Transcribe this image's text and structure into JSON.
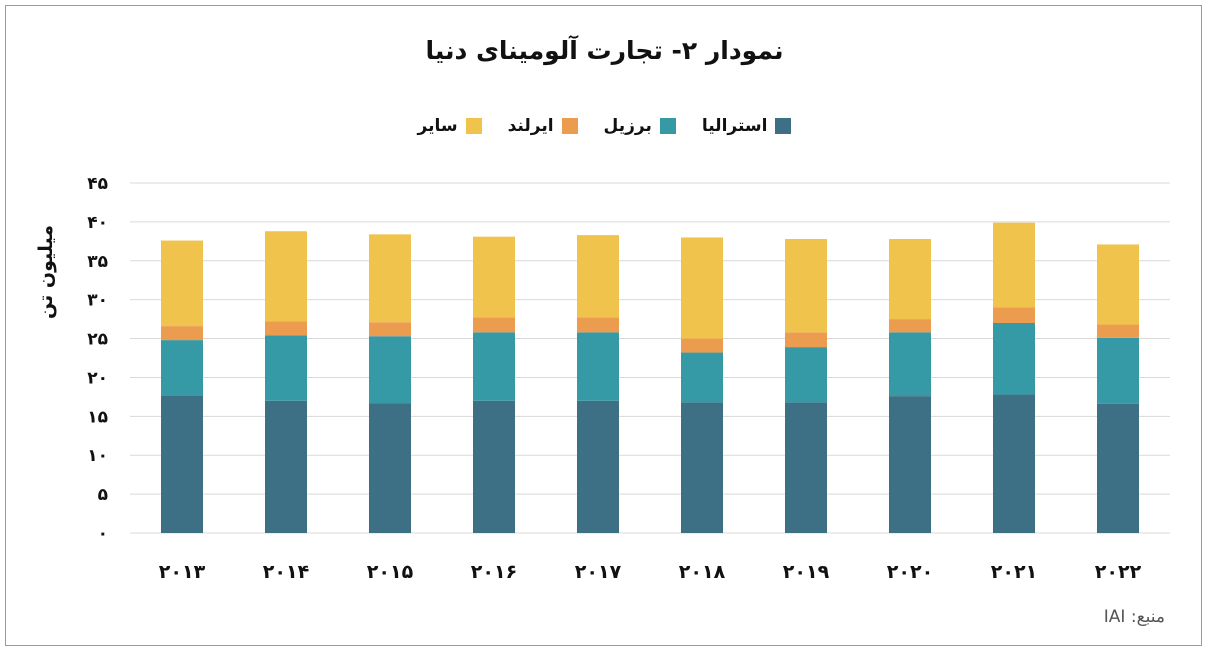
{
  "chart_data": {
    "type": "bar",
    "stacked": true,
    "title": "نمودار ۲- تجارت آلومینای دنیا",
    "ylabel": "میلیون تن",
    "xlabel": "",
    "ylim": [
      0,
      45
    ],
    "yticks": [
      0,
      5,
      10,
      15,
      20,
      25,
      30,
      35,
      40,
      45
    ],
    "ytick_labels": [
      "۰",
      "۵",
      "۱۰",
      "۱۵",
      "۲۰",
      "۲۵",
      "۳۰",
      "۳۵",
      "۴۰",
      "۴۵"
    ],
    "grid": true,
    "legend_position": "top",
    "categories": [
      "۲۰۱۳",
      "۲۰۱۴",
      "۲۰۱۵",
      "۲۰۱۶",
      "۲۰۱۷",
      "۲۰۱۸",
      "۲۰۱۹",
      "۲۰۲۰",
      "۲۰۲۱",
      "۲۰۲۲"
    ],
    "series": [
      {
        "name": "استرالیا",
        "color": "#3d7085",
        "values": [
          17.7,
          17.0,
          16.7,
          17.0,
          17.0,
          16.8,
          16.8,
          17.6,
          17.8,
          16.6
        ]
      },
      {
        "name": "برزیل",
        "color": "#3699a6",
        "values": [
          7.1,
          8.4,
          8.6,
          8.8,
          8.8,
          6.4,
          7.1,
          8.2,
          9.2,
          8.5
        ]
      },
      {
        "name": "ایرلند",
        "color": "#ec9c4f",
        "values": [
          1.8,
          1.8,
          1.8,
          1.9,
          1.9,
          1.8,
          1.9,
          1.7,
          2.0,
          1.7
        ]
      },
      {
        "name": "سایر",
        "color": "#f0c44c",
        "values": [
          11.0,
          11.6,
          11.3,
          10.4,
          10.6,
          13.0,
          12.0,
          10.3,
          10.9,
          10.3
        ]
      }
    ]
  },
  "source": "منبع: IAI"
}
